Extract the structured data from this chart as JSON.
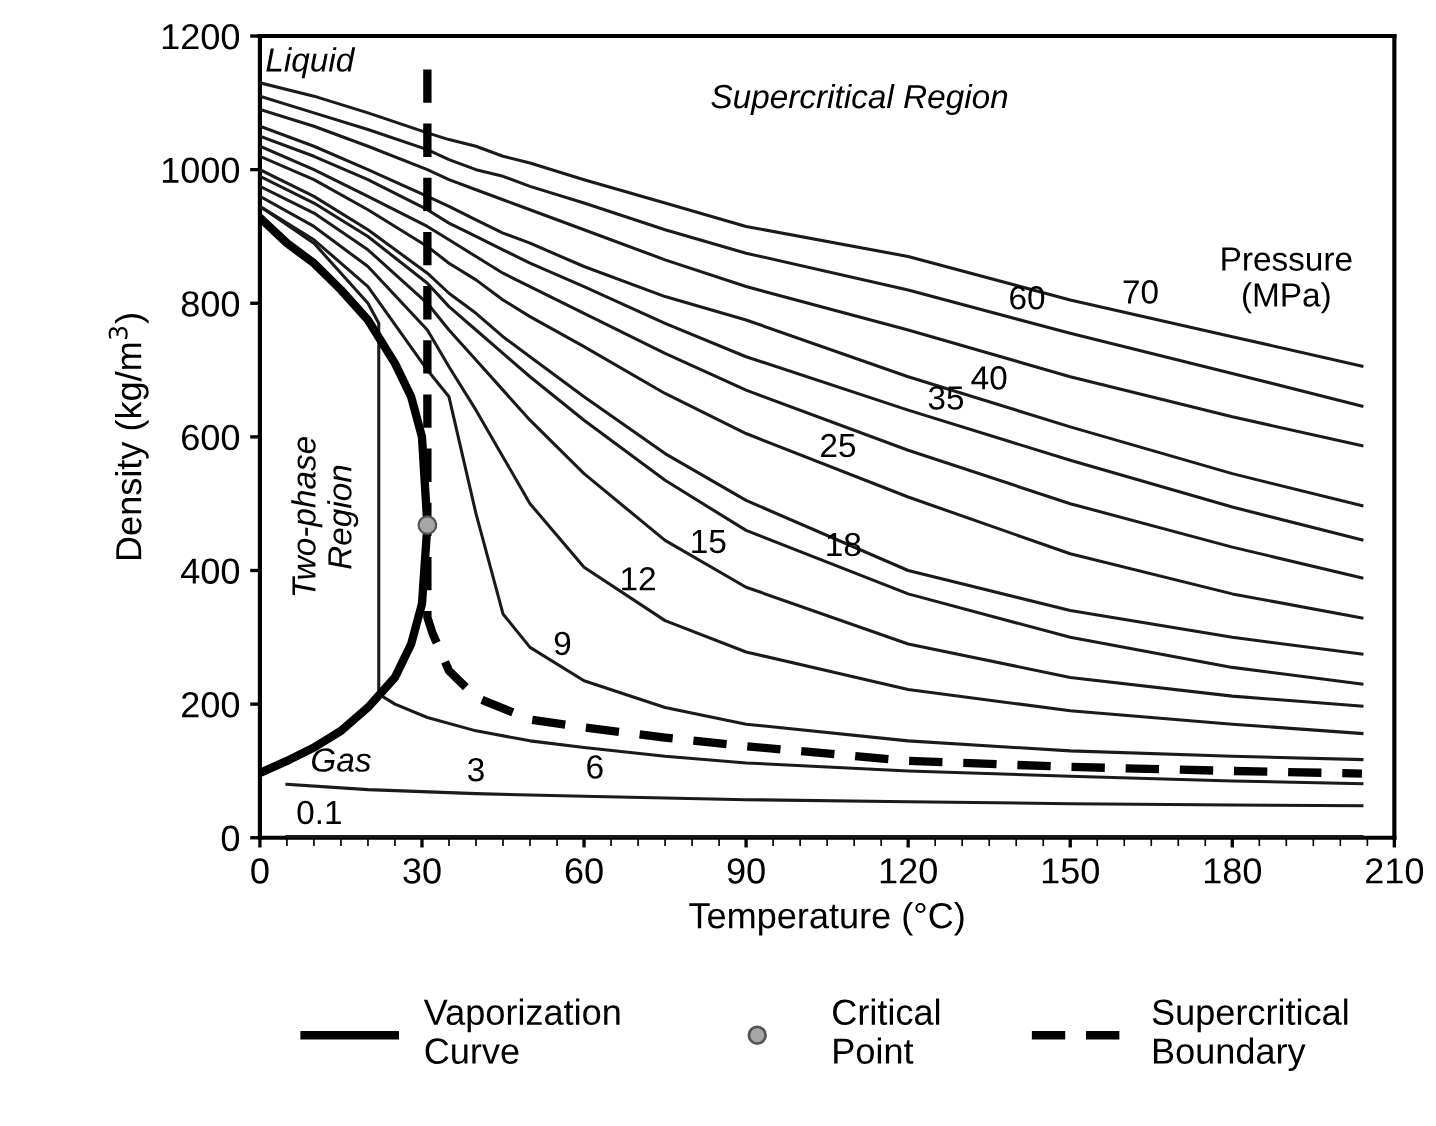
{
  "chart_data": {
    "type": "line",
    "xlabel": "Temperature (°C)",
    "ylabel": "Density (kg/m$^{3}$)",
    "annotations": [
      "Liquid",
      "Supercritical Region",
      "Pressure\n(MPa)",
      "Two-phase\nRegion",
      "Gas"
    ],
    "x": [
      0,
      10,
      20,
      31,
      35,
      40,
      45,
      50,
      60,
      75,
      90,
      120,
      150,
      180,
      204
    ],
    "series": [
      {
        "name": "70",
        "color": "#1a1a1a",
        "values": [
          1130,
          1110,
          1085,
          1055,
          1045,
          1035,
          1020,
          1010,
          985,
          950,
          915,
          870,
          805,
          750,
          706
        ]
      },
      {
        "name": "60",
        "color": "#1a1a1a",
        "values": [
          1110,
          1085,
          1060,
          1030,
          1015,
          1000,
          990,
          975,
          950,
          910,
          875,
          820,
          755,
          695,
          646
        ]
      },
      {
        "color": "#1a1a1a",
        "values": [
          1090,
          1065,
          1035,
          1000,
          985,
          970,
          955,
          940,
          910,
          865,
          825,
          760,
          690,
          630,
          587
        ]
      },
      {
        "name": "40",
        "color": "#1a1a1a",
        "values": [
          1065,
          1035,
          1000,
          960,
          945,
          925,
          905,
          890,
          855,
          810,
          775,
          690,
          615,
          545,
          497
        ]
      },
      {
        "name": "35",
        "color": "#1a1a1a",
        "values": [
          1050,
          1020,
          985,
          940,
          920,
          900,
          880,
          860,
          825,
          770,
          720,
          640,
          565,
          495,
          446
        ]
      },
      {
        "color": "#1a1a1a",
        "values": [
          1035,
          1000,
          960,
          915,
          895,
          870,
          845,
          825,
          785,
          725,
          670,
          580,
          500,
          435,
          389
        ]
      },
      {
        "name": "25",
        "color": "#1a1a1a",
        "values": [
          1020,
          985,
          940,
          885,
          860,
          835,
          805,
          780,
          735,
          665,
          605,
          510,
          425,
          365,
          329
        ]
      },
      {
        "color": "#1a1a1a",
        "values": [
          1000,
          960,
          910,
          845,
          815,
          785,
          750,
          720,
          660,
          575,
          505,
          400,
          340,
          300,
          275
        ]
      },
      {
        "name": "18",
        "color": "#1a1a1a",
        "values": [
          990,
          950,
          900,
          830,
          795,
          760,
          725,
          690,
          625,
          535,
          460,
          365,
          300,
          255,
          230
        ]
      },
      {
        "name": "15",
        "color": "#1a1a1a",
        "values": [
          975,
          935,
          880,
          800,
          760,
          715,
          670,
          625,
          545,
          445,
          375,
          290,
          240,
          212,
          197
        ]
      },
      {
        "name": "12",
        "color": "#1a1a1a",
        "values": [
          960,
          915,
          855,
          760,
          705,
          640,
          570,
          500,
          405,
          325,
          278,
          222,
          190,
          170,
          156
        ]
      },
      {
        "name": "9",
        "color": "#1a1a1a",
        "values": [
          945,
          895,
          825,
          700,
          660,
          485,
          335,
          285,
          235,
          195,
          170,
          145,
          130,
          122,
          117
        ]
      },
      {
        "name": "6",
        "color": "#1a1a1a",
        "x": [
          0,
          10,
          20,
          22,
          22,
          25,
          31,
          40,
          50,
          60,
          75,
          90,
          120,
          150,
          180,
          204
        ],
        "values": [
          945,
          890,
          800,
          770,
          215,
          200,
          180,
          160,
          145,
          135,
          122,
          112,
          100,
          92,
          85,
          81
        ]
      },
      {
        "name": "3",
        "color": "#1a1a1a",
        "x": [
          5,
          20,
          40,
          60,
          90,
          120,
          150,
          180,
          204
        ],
        "values": [
          80,
          72,
          66,
          62,
          57,
          54,
          51,
          49,
          48
        ]
      },
      {
        "name": "0.1",
        "color": "#1a1a1a",
        "x": [
          5,
          204
        ],
        "values": [
          2,
          2
        ]
      },
      {
        "name": "Vaporization\nCurve",
        "color": "#000000",
        "x": [
          0,
          5,
          10,
          15,
          20,
          25,
          28,
          30,
          31,
          30,
          28,
          25,
          20,
          15,
          10,
          5,
          0
        ],
        "values": [
          928,
          890,
          860,
          820,
          775,
          710,
          660,
          600,
          468,
          350,
          290,
          240,
          195,
          160,
          135,
          115,
          97
        ]
      },
      {
        "name": "Critical\nPoint",
        "type": "scatter",
        "marker": "circle",
        "color": "#a6a6a6",
        "x": [
          31
        ],
        "values": [
          468
        ]
      },
      {
        "name": "Supercritical\nBoundary",
        "color": "#000000",
        "line_style": "dashed",
        "x": [
          31,
          31,
          32,
          35,
          40,
          50,
          60,
          75,
          90,
          120,
          150,
          180,
          204
        ],
        "values": [
          1150,
          330,
          305,
          250,
          210,
          177,
          165,
          150,
          137,
          115,
          106,
          100,
          96
        ]
      }
    ],
    "xlim": [
      0,
      210
    ],
    "xticks": [
      0,
      30,
      60,
      90,
      120,
      150,
      180,
      210
    ],
    "ylim": [
      0,
      1200
    ],
    "yticks": [
      0,
      200,
      400,
      600,
      800,
      1000,
      1200
    ],
    "grid": false,
    "legend": "bottom"
  }
}
